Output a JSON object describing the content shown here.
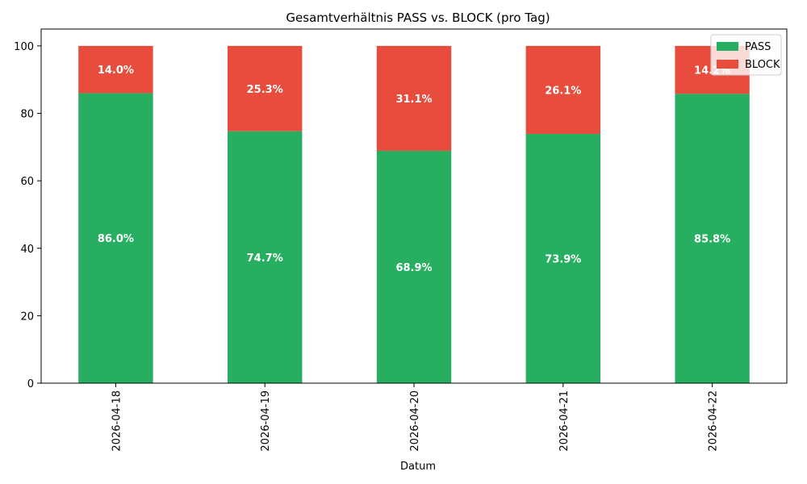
{
  "chart_data": {
    "type": "bar",
    "stacked": true,
    "title": "Gesamtverhältnis PASS vs. BLOCK (pro Tag)",
    "xlabel": "Datum",
    "ylabel": "",
    "ylim": [
      0,
      105
    ],
    "yticks": [
      0,
      20,
      40,
      60,
      80,
      100
    ],
    "categories": [
      "2026-04-18",
      "2026-04-19",
      "2026-04-20",
      "2026-04-21",
      "2026-04-22"
    ],
    "series": [
      {
        "name": "PASS",
        "color": "#27ae60",
        "values": [
          86.0,
          74.7,
          68.9,
          73.9,
          85.8
        ],
        "labels": [
          "86.0%",
          "74.7%",
          "68.9%",
          "73.9%",
          "85.8%"
        ]
      },
      {
        "name": "BLOCK",
        "color": "#e74c3c",
        "values": [
          14.0,
          25.3,
          31.1,
          26.1,
          14.2
        ],
        "labels": [
          "14.0%",
          "25.3%",
          "31.1%",
          "26.1%",
          "14.2%"
        ]
      }
    ],
    "legend": "top-right",
    "grid": false
  }
}
